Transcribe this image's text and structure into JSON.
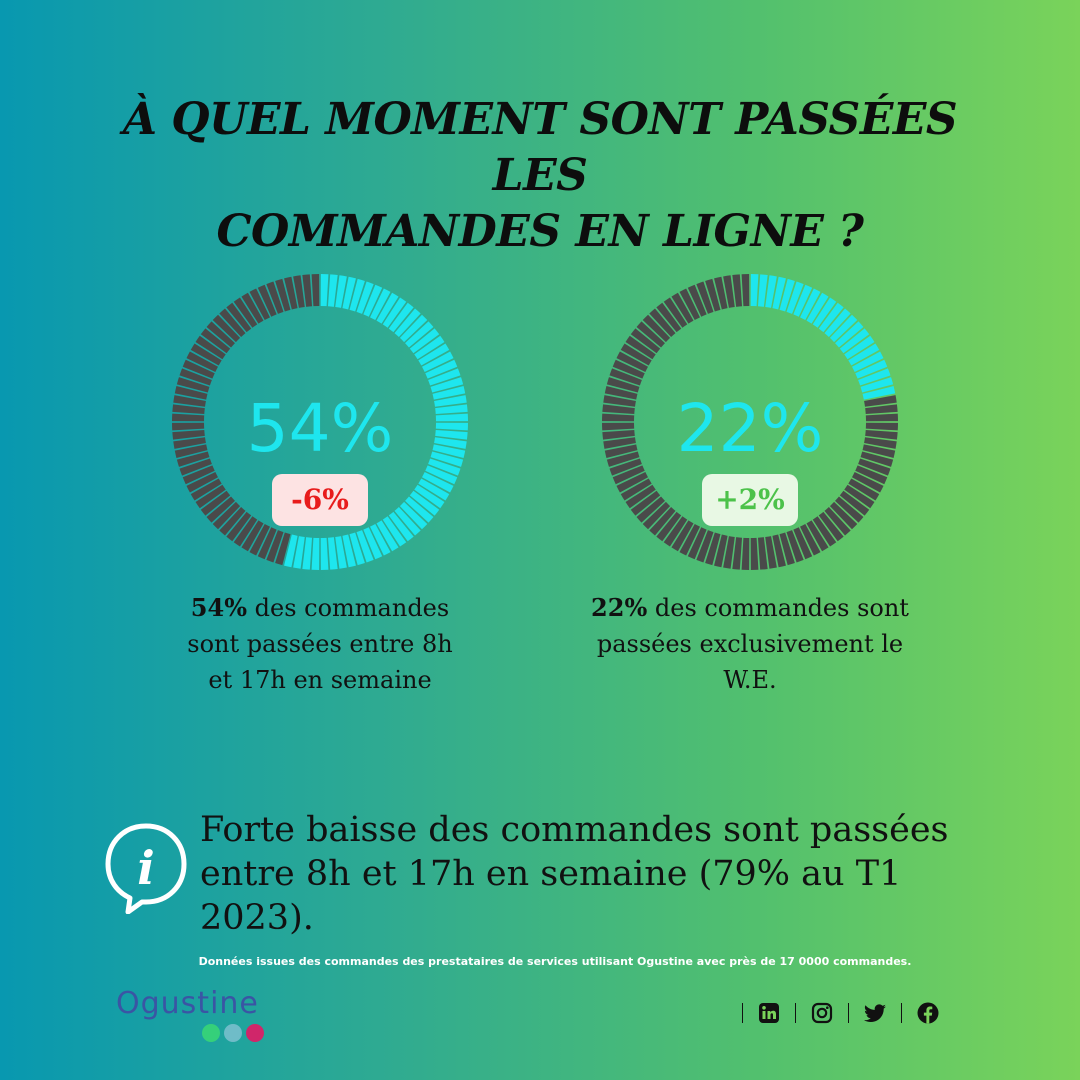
{
  "title": {
    "line1": "À QUEL MOMENT SONT PASSÉES LES",
    "line2": "COMMANDES EN LIGNE ?"
  },
  "colors": {
    "accent": "#1ee6ee",
    "track": "#4a4a4a",
    "negative": "#e81c1c",
    "positive": "#4cc24a"
  },
  "chart_data": [
    {
      "type": "pie",
      "variant": "donut",
      "value_percent": 54,
      "label": "54%",
      "change": "-6%",
      "caption_bold": "54%",
      "caption_rest": " des commandes sont passées entre 8h et 17h en semaine"
    },
    {
      "type": "pie",
      "variant": "donut",
      "value_percent": 22,
      "label": "22%",
      "change": "+2%",
      "caption_bold": "22%",
      "caption_rest": " des commandes sont passées exclusivement le W.E."
    }
  ],
  "info": {
    "icon": "info-speech-bubble-icon",
    "text": "Forte baisse des commandes sont passées entre 8h et 17h en semaine (79% au T1 2023)."
  },
  "source": "Données issues des commandes des prestataires de services utilisant Ogustine avec près de 17 0000 commandes.",
  "brand": {
    "name": "Ogustine",
    "dot_colors": [
      "#35d07a",
      "#6fbcc8",
      "#d0266a"
    ]
  },
  "social": [
    "linkedin-icon",
    "instagram-icon",
    "twitter-icon",
    "facebook-icon"
  ]
}
